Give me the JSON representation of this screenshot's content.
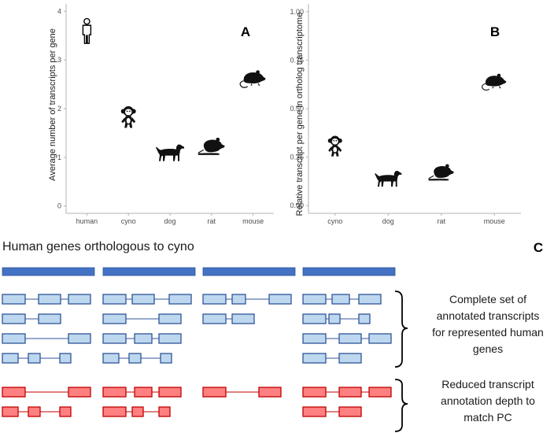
{
  "chart_data": [
    {
      "type": "scatter",
      "panel_label": "A",
      "ylabel": "Average number of transcripts per gene",
      "xlabel": "",
      "categories": [
        "human",
        "cyno",
        "dog",
        "rat",
        "mouse"
      ],
      "values": [
        3.55,
        1.8,
        1.1,
        1.22,
        2.62
      ],
      "markers": [
        "human-icon",
        "monkey-icon",
        "dog-icon",
        "rat-icon",
        "mouse-icon"
      ],
      "ylim": [
        -0.15,
        4.15
      ],
      "yticks": [
        0,
        1,
        2,
        3,
        4
      ],
      "ytick_labels": [
        "0",
        "1",
        "2",
        "3",
        "4"
      ],
      "grid": false
    },
    {
      "type": "scatter",
      "panel_label": "B",
      "ylabel": "Relative transcript per gene in ortholog transcriptome",
      "xlabel": "",
      "categories": [
        "cyno",
        "dog",
        "rat",
        "mouse"
      ],
      "values": [
        0.3,
        0.14,
        0.17,
        0.64
      ],
      "markers": [
        "monkey-icon",
        "dog-icon",
        "rat-icon",
        "mouse-icon"
      ],
      "ylim": [
        -0.04,
        1.04
      ],
      "yticks": [
        0,
        0.25,
        0.5,
        0.75,
        1.0
      ],
      "ytick_labels": [
        "0.00",
        "0.25",
        "0.50",
        "0.75",
        "1.00"
      ],
      "grid": false
    }
  ],
  "panel_c": {
    "label": "C",
    "title": "Human genes orthologous to cyno",
    "complete_label": [
      "Complete set of",
      "annotated transcripts",
      "for represented human",
      "genes"
    ],
    "reduced_label": [
      "Reduced transcript",
      "annotation depth to",
      "match PC"
    ],
    "colors": {
      "gene_bar": "#4472c4",
      "complete_fill": "#bdd7ee",
      "complete_stroke": "#2f5597",
      "reduced_fill": "#ff8080",
      "reduced_stroke": "#c00000"
    }
  }
}
